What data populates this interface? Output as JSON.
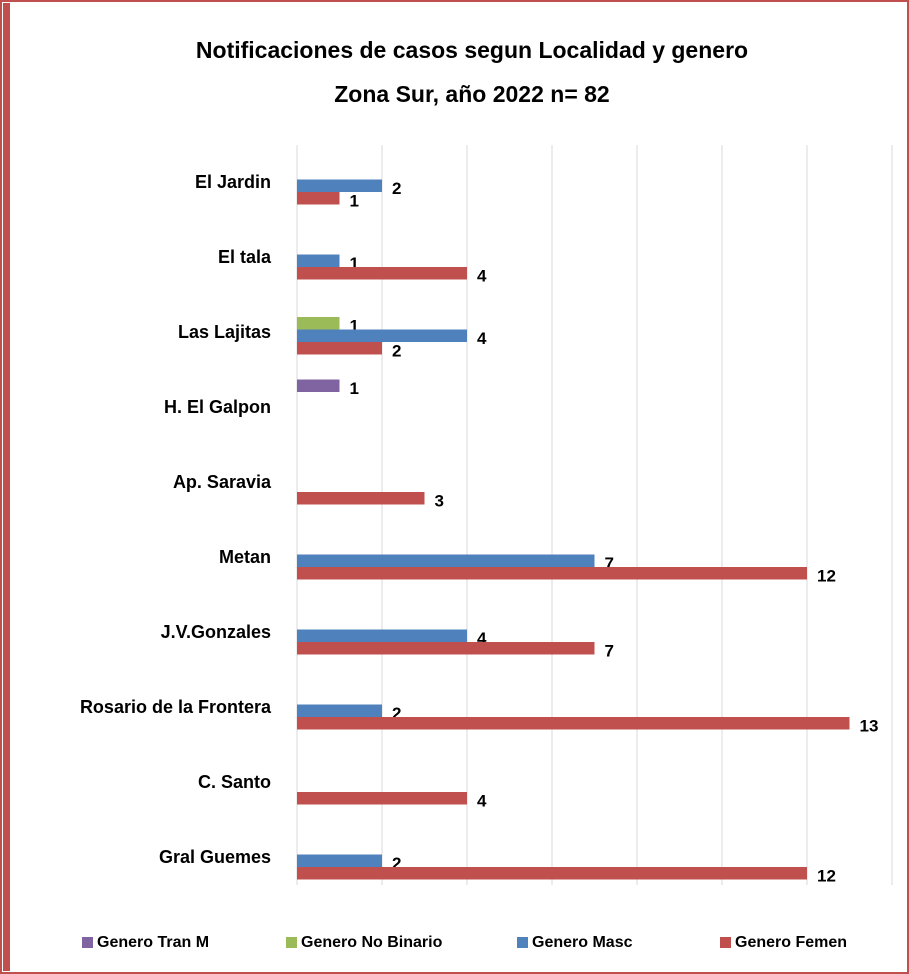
{
  "chart_data": {
    "type": "bar",
    "orientation": "horizontal",
    "title": "Notificaciones de casos segun Localidad y genero",
    "subtitle": "Zona Sur, año 2022 n= 82",
    "categories": [
      "El Jardin",
      "El tala",
      "Las Lajitas",
      "H. El Galpon",
      "Ap. Saravia",
      "Metan",
      "J.V.Gonzales",
      "Rosario de la Frontera",
      "C. Santo",
      "Gral Guemes"
    ],
    "series": [
      {
        "name": "Genero Tran M",
        "color": "#8064a2",
        "values": [
          null,
          null,
          null,
          1,
          null,
          null,
          null,
          null,
          null,
          null
        ]
      },
      {
        "name": "Genero No Binario",
        "color": "#9bbb59",
        "values": [
          null,
          null,
          1,
          null,
          null,
          null,
          null,
          null,
          null,
          null
        ]
      },
      {
        "name": "Genero Masc",
        "color": "#4f81bd",
        "values": [
          2,
          1,
          4,
          null,
          null,
          7,
          4,
          2,
          null,
          2
        ]
      },
      {
        "name": "Genero Femen",
        "color": "#c0504d",
        "values": [
          1,
          4,
          2,
          null,
          3,
          12,
          7,
          13,
          4,
          12
        ]
      }
    ],
    "xlim": [
      0,
      14
    ],
    "xticks": [
      0,
      2,
      4,
      6,
      8,
      10,
      12,
      14
    ],
    "grid": true,
    "legend": "bottom"
  }
}
